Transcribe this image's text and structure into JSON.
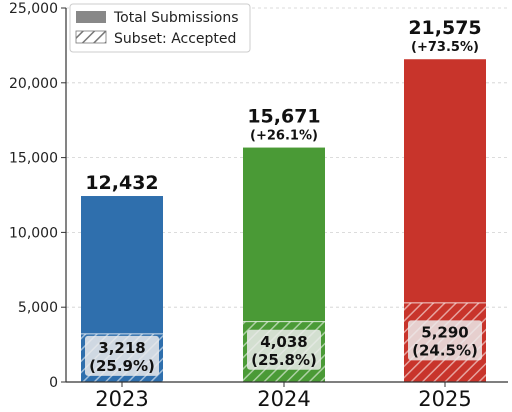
{
  "chart_data": {
    "type": "bar",
    "categories": [
      "2023",
      "2024",
      "2025"
    ],
    "ylim": [
      0,
      25000
    ],
    "yticks": [
      0,
      5000,
      10000,
      15000,
      20000,
      25000
    ],
    "ytick_labels": [
      "0",
      "5,000",
      "10,000",
      "15,000",
      "20,000",
      "25,000"
    ],
    "grid": true,
    "legend_position": "top-left",
    "series": [
      {
        "name": "Total Submissions",
        "values": [
          12432,
          15671,
          21575
        ],
        "labels": [
          "12,432",
          "15,671",
          "21,575"
        ],
        "growth_labels": [
          "",
          "(+26.1%)",
          "(+73.5%)"
        ]
      },
      {
        "name": "Subset: Accepted",
        "values": [
          3218,
          4038,
          5290
        ],
        "labels": [
          "3,218",
          "4,038",
          "5,290"
        ],
        "pct_labels": [
          "(25.9%)",
          "(25.8%)",
          "(24.5%)"
        ]
      }
    ],
    "colors": [
      "#2f6fad",
      "#4a9a36",
      "#c8342b"
    ],
    "legend_swatch_color": "#888888",
    "legend_hatch_color": "#777777"
  }
}
